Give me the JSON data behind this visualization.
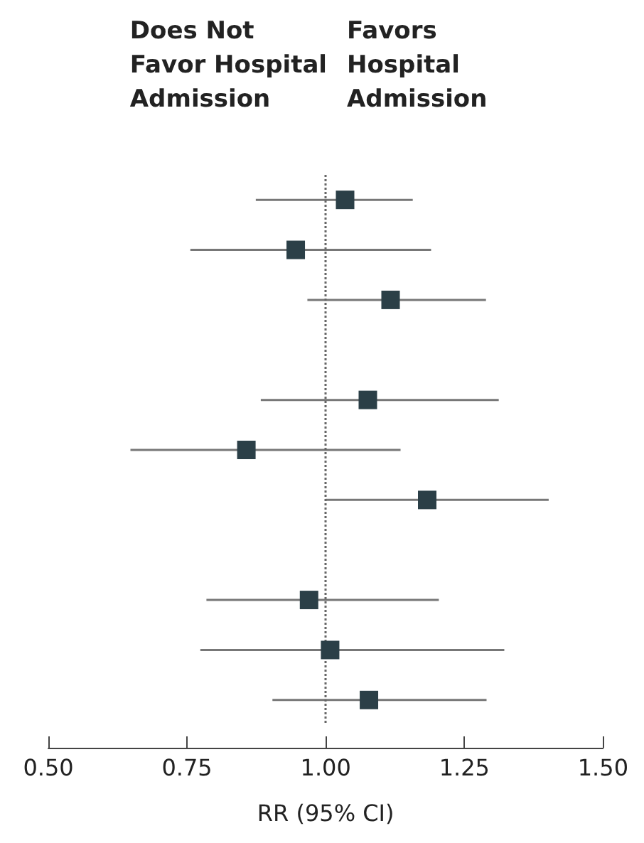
{
  "chart_data": {
    "type": "scatter",
    "orientation": "horizontal",
    "xlabel": "RR (95% CI)",
    "annotations": [
      "Does Not\nFavor Hospital\nAdmission",
      "Favors\nHospital\nAdmission"
    ],
    "categories": [
      null,
      null,
      null,
      null,
      null,
      null,
      null,
      null,
      null,
      null,
      null
    ],
    "values": [
      1.035,
      0.946,
      1.117,
      null,
      1.076,
      0.857,
      1.183,
      null,
      0.97,
      1.008,
      1.078
    ],
    "errors": [
      [
        0.874,
        1.157
      ],
      [
        0.756,
        1.19
      ],
      [
        0.967,
        1.289
      ],
      null,
      [
        0.883,
        1.312
      ],
      [
        0.648,
        1.135
      ],
      [
        1.0,
        1.402
      ],
      null,
      [
        0.785,
        1.204
      ],
      [
        0.774,
        1.322
      ],
      [
        0.904,
        1.29
      ]
    ],
    "color": "#2b3f47",
    "marker": "square",
    "tick_labels": "x",
    "xlim": [
      0.5,
      1.5
    ],
    "xticks": [
      {
        "value": 0.5,
        "label": "0.50"
      },
      {
        "value": 0.75,
        "label": "0.75"
      },
      {
        "value": 1,
        "label": "1.00"
      },
      {
        "value": 1.25,
        "label": "1.25"
      },
      {
        "value": 1.5,
        "label": "1.50"
      }
    ],
    "ref_lines": [
      {
        "axis": "x",
        "value": 1,
        "line_style": "dotted",
        "color": "#666666"
      }
    ]
  }
}
